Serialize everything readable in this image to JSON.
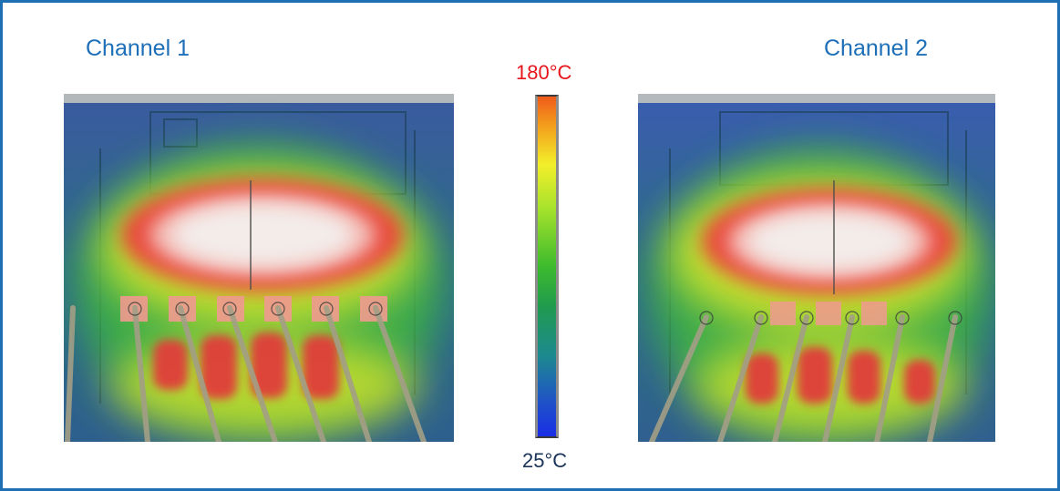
{
  "channels": [
    {
      "title": "Channel 1"
    },
    {
      "title": "Channel 2"
    }
  ],
  "scale": {
    "max_label": "180°C",
    "min_label": "25°C",
    "max_color": "#e8141b",
    "min_color": "#1a3358"
  },
  "colors": {
    "frame_border": "#1f6fb4",
    "title_text": "#1d6fb8"
  }
}
